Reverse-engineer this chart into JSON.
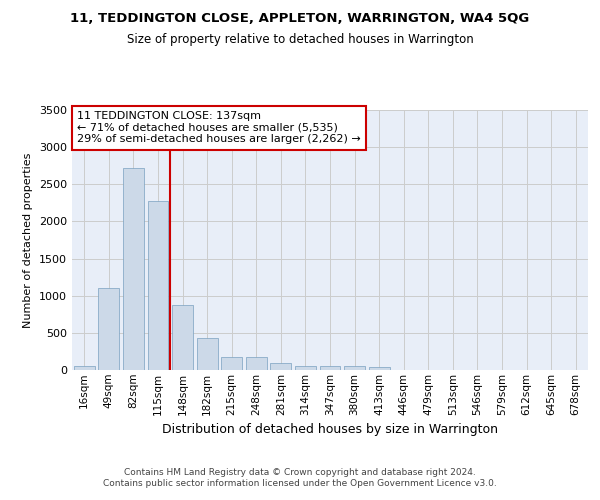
{
  "title": "11, TEDDINGTON CLOSE, APPLETON, WARRINGTON, WA4 5QG",
  "subtitle": "Size of property relative to detached houses in Warrington",
  "xlabel": "Distribution of detached houses by size in Warrington",
  "ylabel": "Number of detached properties",
  "bar_color": "#ccd9e8",
  "bar_edge_color": "#7aA0c0",
  "grid_color": "#cccccc",
  "bg_color": "#e8eef8",
  "categories": [
    "16sqm",
    "49sqm",
    "82sqm",
    "115sqm",
    "148sqm",
    "182sqm",
    "215sqm",
    "248sqm",
    "281sqm",
    "314sqm",
    "347sqm",
    "380sqm",
    "413sqm",
    "446sqm",
    "479sqm",
    "513sqm",
    "546sqm",
    "579sqm",
    "612sqm",
    "645sqm",
    "678sqm"
  ],
  "values": [
    50,
    1100,
    2720,
    2280,
    870,
    430,
    170,
    170,
    90,
    60,
    55,
    50,
    35,
    5,
    0,
    0,
    0,
    0,
    0,
    0,
    0
  ],
  "property_line_bin": 4,
  "property_line_color": "#cc0000",
  "annotation_text": "11 TEDDINGTON CLOSE: 137sqm\n← 71% of detached houses are smaller (5,535)\n29% of semi-detached houses are larger (2,262) →",
  "annotation_box_color": "#cc0000",
  "ylim": [
    0,
    3500
  ],
  "yticks": [
    0,
    500,
    1000,
    1500,
    2000,
    2500,
    3000,
    3500
  ],
  "footer_line1": "Contains HM Land Registry data © Crown copyright and database right 2024.",
  "footer_line2": "Contains public sector information licensed under the Open Government Licence v3.0."
}
